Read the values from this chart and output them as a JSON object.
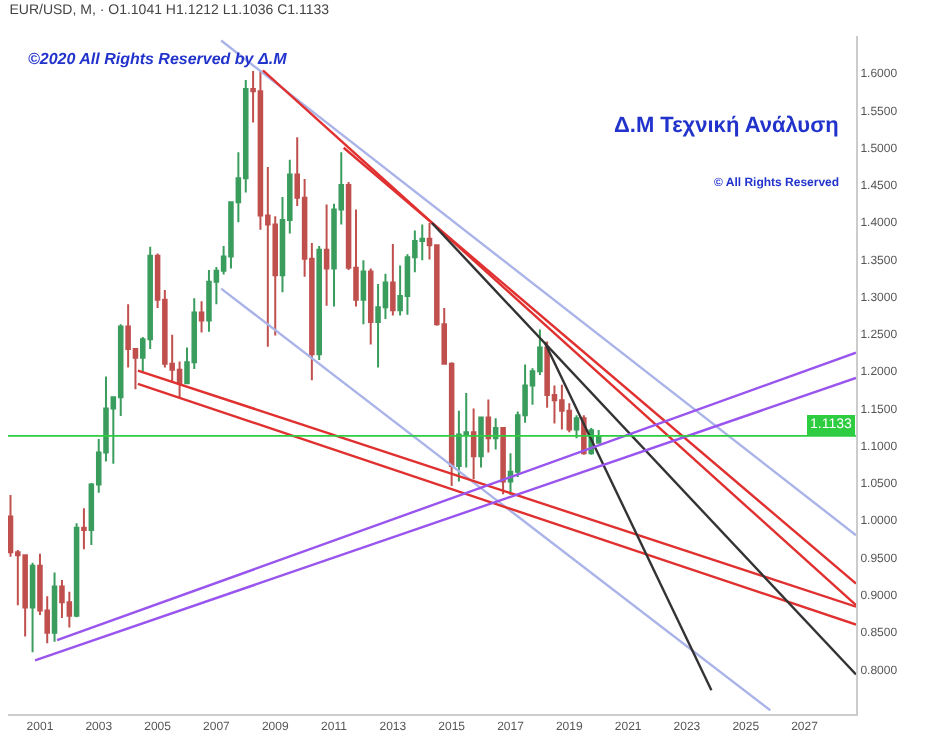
{
  "chart_data": {
    "type": "candlestick",
    "title": "EUR/USD, M, · O1.1041 H1.1212 L1.1036 C1.1133",
    "annotations": [
      "©2020 All Rights Reserved by Δ.Μ",
      "Δ.Μ Τεχνική Ανάλυση",
      "© All Rights Reserved"
    ],
    "x": [
      "2000-01",
      "2000-04",
      "2000-07",
      "2000-10",
      "2001-01",
      "2001-04",
      "2001-07",
      "2001-10",
      "2002-01",
      "2002-04",
      "2002-07",
      "2002-10",
      "2003-01",
      "2003-04",
      "2003-07",
      "2003-10",
      "2004-01",
      "2004-04",
      "2004-07",
      "2004-10",
      "2005-01",
      "2005-04",
      "2005-07",
      "2005-10",
      "2006-01",
      "2006-04",
      "2006-07",
      "2006-10",
      "2007-01",
      "2007-04",
      "2007-07",
      "2007-10",
      "2008-01",
      "2008-04",
      "2008-07",
      "2008-10",
      "2009-01",
      "2009-04",
      "2009-07",
      "2009-10",
      "2010-01",
      "2010-04",
      "2010-07",
      "2010-10",
      "2011-01",
      "2011-04",
      "2011-07",
      "2011-10",
      "2012-01",
      "2012-04",
      "2012-07",
      "2012-10",
      "2013-01",
      "2013-04",
      "2013-07",
      "2013-10",
      "2014-01",
      "2014-04",
      "2014-07",
      "2014-10",
      "2015-01",
      "2015-04",
      "2015-07",
      "2015-10",
      "2016-01",
      "2016-04",
      "2016-07",
      "2016-10",
      "2017-01",
      "2017-04",
      "2017-07",
      "2017-10",
      "2018-01",
      "2018-04",
      "2018-07",
      "2018-10",
      "2019-01",
      "2019-04",
      "2019-07",
      "2019-10",
      "2020-01"
    ],
    "ohlc": [
      [
        1.005,
        1.034,
        0.951,
        0.957
      ],
      [
        0.957,
        0.96,
        0.886,
        0.953
      ],
      [
        0.953,
        0.953,
        0.844,
        0.883
      ],
      [
        0.883,
        0.943,
        0.823,
        0.939
      ],
      [
        0.939,
        0.955,
        0.873,
        0.879
      ],
      [
        0.879,
        0.898,
        0.835,
        0.849
      ],
      [
        0.849,
        0.93,
        0.837,
        0.911
      ],
      [
        0.911,
        0.92,
        0.869,
        0.89
      ],
      [
        0.89,
        0.904,
        0.856,
        0.872
      ],
      [
        0.872,
        0.996,
        0.87,
        0.99
      ],
      [
        0.99,
        1.016,
        0.961,
        0.987
      ],
      [
        0.987,
        1.05,
        0.967,
        1.048
      ],
      [
        1.048,
        1.109,
        1.037,
        1.091
      ],
      [
        1.091,
        1.193,
        1.079,
        1.15
      ],
      [
        1.15,
        1.165,
        1.076,
        1.165
      ],
      [
        1.165,
        1.263,
        1.14,
        1.26
      ],
      [
        1.26,
        1.29,
        1.205,
        1.23
      ],
      [
        1.23,
        1.23,
        1.176,
        1.218
      ],
      [
        1.218,
        1.246,
        1.199,
        1.243
      ],
      [
        1.243,
        1.367,
        1.23,
        1.355
      ],
      [
        1.355,
        1.358,
        1.285,
        1.296
      ],
      [
        1.296,
        1.309,
        1.205,
        1.21
      ],
      [
        1.21,
        1.249,
        1.187,
        1.202
      ],
      [
        1.202,
        1.213,
        1.164,
        1.184
      ],
      [
        1.184,
        1.232,
        1.183,
        1.212
      ],
      [
        1.212,
        1.298,
        1.203,
        1.279
      ],
      [
        1.279,
        1.294,
        1.252,
        1.268
      ],
      [
        1.268,
        1.336,
        1.253,
        1.32
      ],
      [
        1.32,
        1.34,
        1.29,
        1.335
      ],
      [
        1.335,
        1.368,
        1.33,
        1.354
      ],
      [
        1.354,
        1.427,
        1.338,
        1.427
      ],
      [
        1.427,
        1.494,
        1.4,
        1.459
      ],
      [
        1.459,
        1.591,
        1.44,
        1.579
      ],
      [
        1.579,
        1.603,
        1.534,
        1.576
      ],
      [
        1.576,
        1.604,
        1.39,
        1.409
      ],
      [
        1.409,
        1.474,
        1.233,
        1.397
      ],
      [
        1.397,
        1.408,
        1.248,
        1.329
      ],
      [
        1.329,
        1.434,
        1.306,
        1.403
      ],
      [
        1.403,
        1.484,
        1.385,
        1.464
      ],
      [
        1.464,
        1.514,
        1.422,
        1.433
      ],
      [
        1.433,
        1.458,
        1.327,
        1.351
      ],
      [
        1.351,
        1.372,
        1.188,
        1.223
      ],
      [
        1.223,
        1.368,
        1.215,
        1.363
      ],
      [
        1.363,
        1.424,
        1.288,
        1.338
      ],
      [
        1.338,
        1.425,
        1.287,
        1.417
      ],
      [
        1.417,
        1.494,
        1.397,
        1.45
      ],
      [
        1.45,
        1.454,
        1.336,
        1.339
      ],
      [
        1.339,
        1.417,
        1.287,
        1.296
      ],
      [
        1.296,
        1.349,
        1.263,
        1.334
      ],
      [
        1.334,
        1.338,
        1.236,
        1.266
      ],
      [
        1.266,
        1.317,
        1.205,
        1.286
      ],
      [
        1.286,
        1.331,
        1.27,
        1.319
      ],
      [
        1.319,
        1.371,
        1.275,
        1.282
      ],
      [
        1.282,
        1.342,
        1.275,
        1.301
      ],
      [
        1.301,
        1.357,
        1.276,
        1.353
      ],
      [
        1.353,
        1.389,
        1.333,
        1.375
      ],
      [
        1.375,
        1.397,
        1.349,
        1.378
      ],
      [
        1.378,
        1.399,
        1.35,
        1.369
      ],
      [
        1.369,
        1.37,
        1.261,
        1.263
      ],
      [
        1.263,
        1.285,
        1.209,
        1.21
      ],
      [
        1.21,
        1.212,
        1.046,
        1.073
      ],
      [
        1.073,
        1.147,
        1.052,
        1.115
      ],
      [
        1.115,
        1.171,
        1.071,
        1.118
      ],
      [
        1.118,
        1.15,
        1.055,
        1.086
      ],
      [
        1.086,
        1.139,
        1.071,
        1.138
      ],
      [
        1.138,
        1.162,
        1.091,
        1.11
      ],
      [
        1.11,
        1.137,
        1.095,
        1.124
      ],
      [
        1.124,
        1.125,
        1.035,
        1.052
      ],
      [
        1.052,
        1.09,
        1.034,
        1.065
      ],
      [
        1.065,
        1.146,
        1.058,
        1.141
      ],
      [
        1.141,
        1.209,
        1.131,
        1.181
      ],
      [
        1.181,
        1.204,
        1.155,
        1.2
      ],
      [
        1.2,
        1.256,
        1.195,
        1.232
      ],
      [
        1.232,
        1.24,
        1.151,
        1.168
      ],
      [
        1.168,
        1.181,
        1.13,
        1.161
      ],
      [
        1.161,
        1.182,
        1.122,
        1.147
      ],
      [
        1.147,
        1.157,
        1.118,
        1.122
      ],
      [
        1.122,
        1.141,
        1.11,
        1.137
      ],
      [
        1.137,
        1.141,
        1.088,
        1.09
      ],
      [
        1.09,
        1.124,
        1.088,
        1.121
      ],
      [
        1.1041,
        1.1212,
        1.1036,
        1.1133
      ]
    ],
    "colors": [
      "#c0504d",
      "#c0504d",
      "#c0504d",
      "#3a9d5d",
      "#c0504d",
      "#c0504d",
      "#3a9d5d",
      "#c0504d",
      "#c0504d",
      "#3a9d5d",
      "#c0504d",
      "#3a9d5d",
      "#3a9d5d",
      "#3a9d5d",
      "#3a9d5d",
      "#3a9d5d",
      "#c0504d",
      "#c0504d",
      "#3a9d5d",
      "#3a9d5d",
      "#c0504d",
      "#c0504d",
      "#c0504d",
      "#c0504d",
      "#3a9d5d",
      "#3a9d5d",
      "#c0504d",
      "#3a9d5d",
      "#3a9d5d",
      "#3a9d5d",
      "#3a9d5d",
      "#3a9d5d",
      "#3a9d5d",
      "#c0504d",
      "#c0504d",
      "#c0504d",
      "#c0504d",
      "#3a9d5d",
      "#3a9d5d",
      "#c0504d",
      "#c0504d",
      "#c0504d",
      "#3a9d5d",
      "#c0504d",
      "#3a9d5d",
      "#3a9d5d",
      "#c0504d",
      "#c0504d",
      "#3a9d5d",
      "#c0504d",
      "#3a9d5d",
      "#3a9d5d",
      "#c0504d",
      "#3a9d5d",
      "#3a9d5d",
      "#3a9d5d",
      "#3a9d5d",
      "#c0504d",
      "#c0504d",
      "#c0504d",
      "#c0504d",
      "#3a9d5d",
      "#3a9d5d",
      "#c0504d",
      "#3a9d5d",
      "#c0504d",
      "#3a9d5d",
      "#c0504d",
      "#3a9d5d",
      "#3a9d5d",
      "#3a9d5d",
      "#3a9d5d",
      "#3a9d5d",
      "#c0504d",
      "#c0504d",
      "#c0504d",
      "#c0504d",
      "#3a9d5d",
      "#c0504d",
      "#3a9d5d",
      "#3a9d5d"
    ],
    "series": [
      {
        "type": "line",
        "color": "#aab4e8",
        "x": [
          "2007-03",
          "2028-10"
        ],
        "values": [
          1.644,
          0.98
        ]
      },
      {
        "type": "line",
        "color": "#aab4e8",
        "x": [
          "2007-03",
          "2025-11"
        ],
        "values": [
          1.311,
          0.745
        ]
      },
      {
        "type": "line",
        "color": "#e03030",
        "x": [
          "2008-08",
          "2028-10"
        ],
        "values": [
          1.604,
          0.886
        ]
      },
      {
        "type": "line",
        "color": "#e03030",
        "x": [
          "2011-05",
          "2028-10"
        ],
        "values": [
          1.5,
          0.915
        ]
      },
      {
        "type": "line",
        "color": "#e03030",
        "x": [
          "2004-05",
          "2028-10"
        ],
        "values": [
          1.201,
          0.884
        ]
      },
      {
        "type": "line",
        "color": "#e03030",
        "x": [
          "2004-05",
          "2028-10"
        ],
        "values": [
          1.183,
          0.86
        ]
      },
      {
        "type": "line",
        "color": "#333333",
        "x": [
          "2014-05",
          "2028-10"
        ],
        "values": [
          1.399,
          0.793
        ]
      },
      {
        "type": "line",
        "color": "#333333",
        "x": [
          "2018-03",
          "2023-11"
        ],
        "values": [
          1.239,
          0.772
        ]
      },
      {
        "type": "line",
        "color": "#9955ee",
        "x": [
          "2001-08",
          "2028-10"
        ],
        "values": [
          0.839,
          1.225
        ]
      },
      {
        "type": "line",
        "color": "#9955ee",
        "x": [
          "2000-11",
          "2028-10"
        ],
        "values": [
          0.812,
          1.191
        ]
      }
    ],
    "ref_lines": [
      {
        "axis": "y",
        "value": 1.1133,
        "label": "1.1133",
        "color": "#2ecc40"
      }
    ],
    "xlim": [
      "1999-12",
      "2028-10"
    ],
    "xticks": [
      {
        "value": "2001",
        "label": "2001"
      },
      {
        "value": "2003",
        "label": "2003"
      },
      {
        "value": "2005",
        "label": "2005"
      },
      {
        "value": "2007",
        "label": "2007"
      },
      {
        "value": "2009",
        "label": "2009"
      },
      {
        "value": "2011",
        "label": "2011"
      },
      {
        "value": "2013",
        "label": "2013"
      },
      {
        "value": "2015",
        "label": "2015"
      },
      {
        "value": "2017",
        "label": "2017"
      },
      {
        "value": "2019",
        "label": "2019"
      },
      {
        "value": "2021",
        "label": "2021"
      },
      {
        "value": "2023",
        "label": "2023"
      },
      {
        "value": "2025",
        "label": "2025"
      },
      {
        "value": "2027",
        "label": "2027"
      }
    ],
    "ylim": [
      0.74,
      1.65
    ],
    "yticks": [
      {
        "value": 0.8,
        "label": "0.8000"
      },
      {
        "value": 0.85,
        "label": "0.8500"
      },
      {
        "value": 0.9,
        "label": "0.9000"
      },
      {
        "value": 0.95,
        "label": "0.9500"
      },
      {
        "value": 1.0,
        "label": "1.0000"
      },
      {
        "value": 1.05,
        "label": "1.0500"
      },
      {
        "value": 1.1,
        "label": "1.1000"
      },
      {
        "value": 1.15,
        "label": "1.1500"
      },
      {
        "value": 1.2,
        "label": "1.2000"
      },
      {
        "value": 1.25,
        "label": "1.2500"
      },
      {
        "value": 1.3,
        "label": "1.3000"
      },
      {
        "value": 1.35,
        "label": "1.3500"
      },
      {
        "value": 1.4,
        "label": "1.4000"
      },
      {
        "value": 1.45,
        "label": "1.4500"
      },
      {
        "value": 1.5,
        "label": "1.5000"
      },
      {
        "value": 1.55,
        "label": "1.5500"
      },
      {
        "value": 1.6,
        "label": "1.6000"
      }
    ],
    "tick_labels": "xy"
  }
}
